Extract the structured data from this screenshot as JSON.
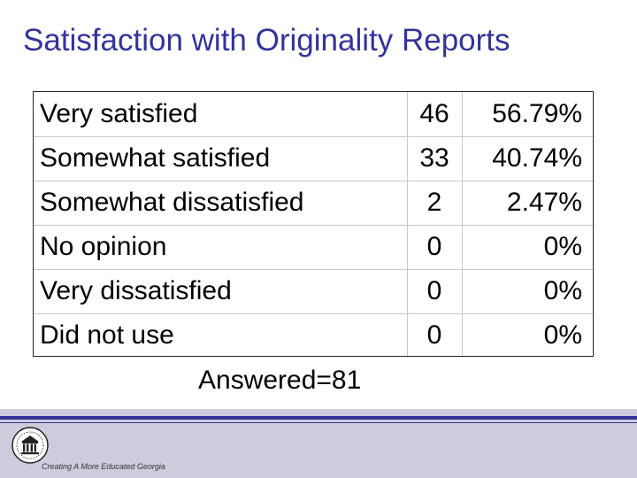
{
  "slide": {
    "title": "Satisfaction with Originality Reports",
    "answered": "Answered=81"
  },
  "table": {
    "rows": [
      {
        "label": "Very satisfied",
        "count": "46",
        "percent": "56.79%"
      },
      {
        "label": "Somewhat satisfied",
        "count": "33",
        "percent": "40.74%"
      },
      {
        "label": "Somewhat dissatisfied",
        "count": "2",
        "percent": "2.47%"
      },
      {
        "label": "No opinion",
        "count": "0",
        "percent": "0%"
      },
      {
        "label": "Very dissatisfied",
        "count": "0",
        "percent": "0%"
      },
      {
        "label": "Did not use",
        "count": "0",
        "percent": "0%"
      }
    ]
  },
  "footer": {
    "tagline": "Creating A More Educated Georgia",
    "seal_icon": "university-seal-icon",
    "colors": {
      "accent": "#333399",
      "band": "#ccccdd"
    }
  }
}
